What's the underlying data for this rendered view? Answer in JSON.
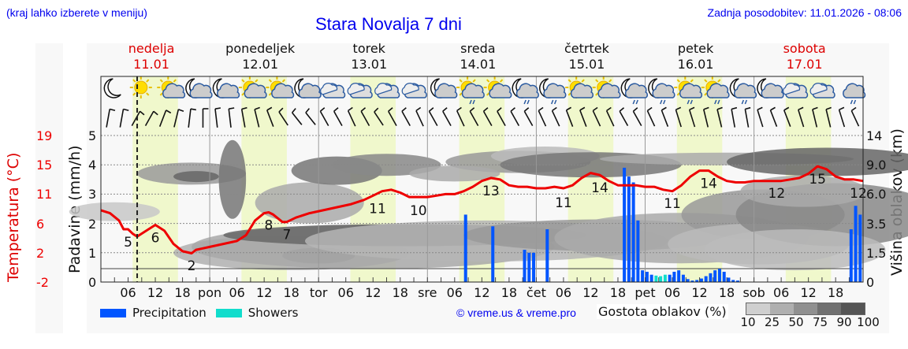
{
  "header": {
    "menu_hint": "(kraj lahko izberete v meniju)",
    "title": "Stara Novalja 7 dni",
    "last_update": "Zadnja posodobitev: 11.01.2026 - 08:06"
  },
  "days": [
    {
      "name": "nedelja",
      "date": "11.01",
      "weekend": true
    },
    {
      "name": "ponedeljek",
      "date": "12.01",
      "weekend": false
    },
    {
      "name": "torek",
      "date": "13.01",
      "weekend": false
    },
    {
      "name": "sreda",
      "date": "14.01",
      "weekend": false
    },
    {
      "name": "četrtek",
      "date": "15.01",
      "weekend": false
    },
    {
      "name": "petek",
      "date": "16.01",
      "weekend": false
    },
    {
      "name": "sobota",
      "date": "17.01",
      "weekend": true
    }
  ],
  "axes": {
    "left_temp_label": "Temperatura (°C)",
    "left_temp_ticks": [
      "19",
      "15",
      "11",
      "6",
      "2",
      "-2"
    ],
    "left_precip_label": "Padavine (mm/h)",
    "left_precip_ticks": [
      "5",
      "4",
      "3",
      "2",
      "1",
      "0"
    ],
    "right_label": "Višina oblakov (km)",
    "right_ticks": [
      "14",
      "9.0",
      "6.0",
      "3.5",
      "1.5",
      "0"
    ],
    "x_ticks": [
      "06",
      "12",
      "18",
      "pon",
      "06",
      "12",
      "18",
      "tor",
      "06",
      "12",
      "18",
      "sre",
      "06",
      "12",
      "18",
      "čet",
      "06",
      "12",
      "18",
      "pet",
      "06",
      "12",
      "18",
      "sob",
      "06",
      "12",
      "18"
    ]
  },
  "legend": {
    "precipitation": "Precipitation",
    "showers": "Showers",
    "copyright": "© vreme.us & vreme.pro",
    "cloud_density_label": "Gostota oblakov (%)",
    "cloud_density_ticks": [
      "10",
      "25",
      "50",
      "75",
      "90",
      "100"
    ]
  },
  "colors": {
    "precipitation": "#0055ff",
    "showers": "#11ddcc",
    "temperature": "#ee0000",
    "daylight": "#f0f8cc",
    "weekend_text": "#dd0000",
    "link_blue": "#0000ee"
  },
  "icons": [
    "moon",
    "sun",
    "sun-cloud",
    "moon-cloud",
    "moon-cloud",
    "sun-cloud",
    "sun-cloud",
    "moon-cloud",
    "cloudy",
    "cloudy",
    "cloudy",
    "cloudy",
    "moon-cloud",
    "sun-cloud-rain",
    "sun-cloud",
    "moon-cloud-rain",
    "moon-cloud-rain",
    "sun-cloud",
    "sun-cloud",
    "moon-cloud-rain",
    "moon-cloud-rain",
    "sun-cloud-rain",
    "sun-cloud-rain",
    "moon-cloud-rain",
    "moon-cloud",
    "cloudy",
    "cloudy",
    "cloud-rain"
  ],
  "chart_data": {
    "type": "line",
    "title": "Stara Novalja 7 dni",
    "xlabel": "",
    "ylabel": "Padavine (mm/h)",
    "ylim": [
      0,
      5
    ],
    "temperature_labels": [
      {
        "hour": 6,
        "value": 5
      },
      {
        "hour": 12,
        "value": 6
      },
      {
        "hour": 20,
        "value": 2
      },
      {
        "hour": 37,
        "value": 8
      },
      {
        "hour": 41,
        "value": 7
      },
      {
        "hour": 61,
        "value": 11
      },
      {
        "hour": 70,
        "value": 10
      },
      {
        "hour": 86,
        "value": 13
      },
      {
        "hour": 102,
        "value": 11
      },
      {
        "hour": 110,
        "value": 14
      },
      {
        "hour": 126,
        "value": 11
      },
      {
        "hour": 134,
        "value": 14
      },
      {
        "hour": 149,
        "value": 12
      },
      {
        "hour": 158,
        "value": 15
      },
      {
        "hour": 167,
        "value": 12
      }
    ],
    "series": [
      {
        "name": "Temperatura (°C)",
        "axis_position_mmh": {
          "hours": [
            0,
            2,
            4,
            5,
            6,
            7,
            8,
            10,
            12,
            14,
            16,
            18,
            20,
            21,
            24,
            27,
            30,
            32,
            34,
            36,
            37,
            38,
            40,
            41,
            43,
            46,
            49,
            52,
            55,
            58,
            60,
            62,
            64,
            66,
            68,
            70,
            72,
            74,
            76,
            78,
            80,
            82,
            84,
            86,
            88,
            90,
            92,
            94,
            96,
            98,
            100,
            102,
            104,
            106,
            108,
            110,
            112,
            114,
            116,
            118,
            120,
            122,
            124,
            126,
            128,
            130,
            132,
            134,
            136,
            138,
            140,
            142,
            144,
            146,
            148,
            150,
            152,
            154,
            156,
            158,
            160,
            162,
            164,
            166,
            168
          ],
          "values": [
            2.45,
            2.35,
            2.1,
            1.8,
            1.8,
            1.65,
            1.55,
            1.75,
            1.95,
            1.75,
            1.3,
            1.05,
            0.98,
            1.1,
            1.2,
            1.3,
            1.4,
            1.6,
            2.1,
            2.35,
            2.38,
            2.3,
            2.05,
            2.05,
            2.2,
            2.35,
            2.45,
            2.55,
            2.65,
            2.8,
            2.95,
            3.1,
            3.15,
            3.05,
            2.9,
            2.9,
            2.9,
            2.95,
            3.0,
            3.0,
            3.1,
            3.25,
            3.45,
            3.55,
            3.5,
            3.3,
            3.25,
            3.25,
            3.2,
            3.2,
            3.25,
            3.2,
            3.3,
            3.55,
            3.72,
            3.65,
            3.45,
            3.3,
            3.3,
            3.3,
            3.25,
            3.25,
            3.15,
            3.1,
            3.3,
            3.6,
            3.8,
            3.8,
            3.6,
            3.45,
            3.4,
            3.4,
            3.45,
            3.45,
            3.45,
            3.45,
            3.5,
            3.55,
            3.7,
            3.95,
            3.85,
            3.6,
            3.5,
            3.5,
            3.45
          ]
        }
      },
      {
        "name": "Precipitation",
        "bars": [
          {
            "hour": 80.5,
            "value": 2.3
          },
          {
            "hour": 86.5,
            "value": 1.9
          },
          {
            "hour": 93.5,
            "value": 1.1
          },
          {
            "hour": 94.5,
            "value": 1.0
          },
          {
            "hour": 95.5,
            "value": 1.0
          },
          {
            "hour": 98.5,
            "value": 1.8
          },
          {
            "hour": 115.5,
            "value": 3.9
          },
          {
            "hour": 116.5,
            "value": 3.6
          },
          {
            "hour": 117.5,
            "value": 3.4
          },
          {
            "hour": 118.5,
            "value": 2.1
          },
          {
            "hour": 119.5,
            "value": 0.4
          },
          {
            "hour": 120.5,
            "value": 0.35
          },
          {
            "hour": 121.5,
            "value": 0.25
          },
          {
            "hour": 125.5,
            "value": 0.25
          },
          {
            "hour": 126.5,
            "value": 0.35
          },
          {
            "hour": 127.5,
            "value": 0.4
          },
          {
            "hour": 128.5,
            "value": 0.25
          },
          {
            "hour": 129.5,
            "value": 0.1
          },
          {
            "hour": 130.5,
            "value": 0.05
          },
          {
            "hour": 131.5,
            "value": 0.07
          },
          {
            "hour": 132.5,
            "value": 0.12
          },
          {
            "hour": 133.5,
            "value": 0.2
          },
          {
            "hour": 134.5,
            "value": 0.3
          },
          {
            "hour": 135.5,
            "value": 0.4
          },
          {
            "hour": 136.5,
            "value": 0.45
          },
          {
            "hour": 137.5,
            "value": 0.35
          },
          {
            "hour": 138.5,
            "value": 0.15
          },
          {
            "hour": 139.5,
            "value": 0.07
          },
          {
            "hour": 140.5,
            "value": 0.05
          },
          {
            "hour": 165.5,
            "value": 1.8
          },
          {
            "hour": 166.5,
            "value": 2.6
          },
          {
            "hour": 167.5,
            "value": 2.3
          }
        ]
      },
      {
        "name": "Showers",
        "bars": [
          {
            "hour": 122.5,
            "value": 0.22
          },
          {
            "hour": 123.5,
            "value": 0.2
          },
          {
            "hour": 124.5,
            "value": 0.25
          }
        ]
      }
    ],
    "current_time_hour": 8,
    "daylight_hours": [
      7,
      17
    ]
  }
}
